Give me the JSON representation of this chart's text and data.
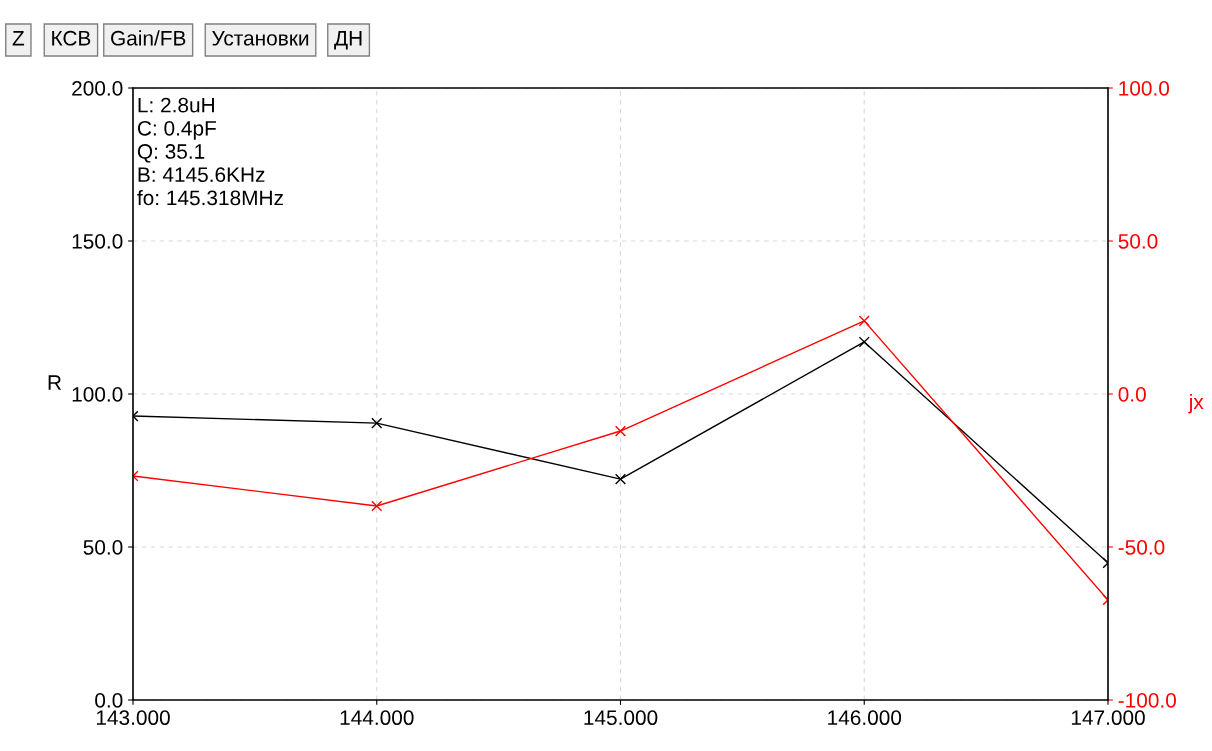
{
  "chart_data": {
    "type": "line",
    "ylabel": "R",
    "y2label": "jx",
    "annotations": [
      "L: 2.8uH\nC: 0.4pF\nQ: 35.1\nB: 4145.6KHz\nfo: 145.318MHz",
      "Z",
      "КСВ",
      "Gain/FB",
      "Установки",
      "ДН"
    ],
    "x": [
      143,
      144,
      145,
      146,
      147
    ],
    "series": [
      {
        "color": "#000000",
        "values": [
          92.8,
          90.5,
          72.2,
          117.0,
          44.8
        ]
      },
      {
        "color": "#ff0000",
        "axis": "y2",
        "values": [
          -26.8,
          -36.6,
          -12.1,
          23.9,
          -67.3
        ]
      }
    ],
    "xlim": [
      143,
      147
    ],
    "xticks": [
      {
        "value": 143,
        "label": "143.000"
      },
      {
        "value": 144,
        "label": "144.000"
      },
      {
        "value": 145,
        "label": "145.000"
      },
      {
        "value": 146,
        "label": "146.000"
      },
      {
        "value": 147,
        "label": "147.000"
      }
    ],
    "ylim": [
      0,
      200
    ],
    "yticks": [
      {
        "value": 0,
        "label": "0.0"
      },
      {
        "value": 50,
        "label": "50.0"
      },
      {
        "value": 100,
        "label": "100.0"
      },
      {
        "value": 150,
        "label": "150.0"
      },
      {
        "value": 200,
        "label": "200.0"
      }
    ],
    "y2lim": [
      -100,
      100
    ],
    "y2ticks": [
      {
        "value": -100,
        "label": "-100.0"
      },
      {
        "value": -50,
        "label": "-50.0"
      },
      {
        "value": 0,
        "label": "0.0"
      },
      {
        "value": 50,
        "label": "50.0"
      },
      {
        "value": 100,
        "label": "100.0"
      }
    ],
    "grid": true,
    "marker": "cross",
    "line_style": "solid"
  }
}
